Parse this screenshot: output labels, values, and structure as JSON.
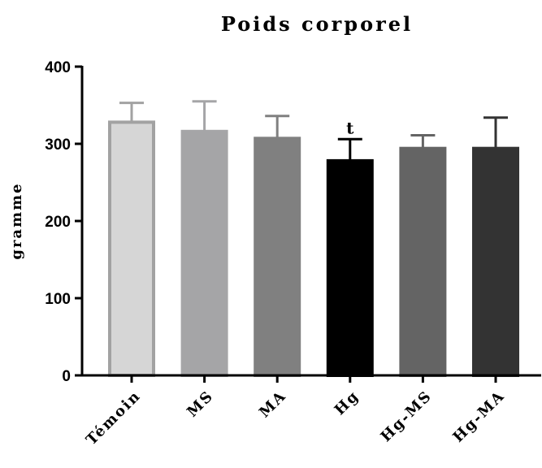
{
  "chart_data": {
    "type": "bar",
    "title": "Poids corporel",
    "xlabel": "",
    "ylabel": "gramme",
    "ylim": [
      0,
      400
    ],
    "yticks": [
      "0",
      "100",
      "200",
      "300",
      "400"
    ],
    "grid": false,
    "categories": [
      "Témoin",
      "MS",
      "MA",
      "Hg",
      "Hg-MS",
      "Hg-MA"
    ],
    "values": [
      328,
      316,
      307,
      278,
      294,
      294
    ],
    "error_upper": [
      353,
      355,
      336,
      306,
      311,
      334
    ],
    "colors": [
      "#d6d6d6",
      "#a5a5a7",
      "#808080",
      "#000000",
      "#646464",
      "#333333"
    ],
    "edge_colors": [
      "#a2a2a2",
      "#a5a5a7",
      "#808080",
      "#000000",
      "#646464",
      "#333333"
    ],
    "annotations": [
      {
        "category": "Hg",
        "text": "t"
      }
    ]
  }
}
